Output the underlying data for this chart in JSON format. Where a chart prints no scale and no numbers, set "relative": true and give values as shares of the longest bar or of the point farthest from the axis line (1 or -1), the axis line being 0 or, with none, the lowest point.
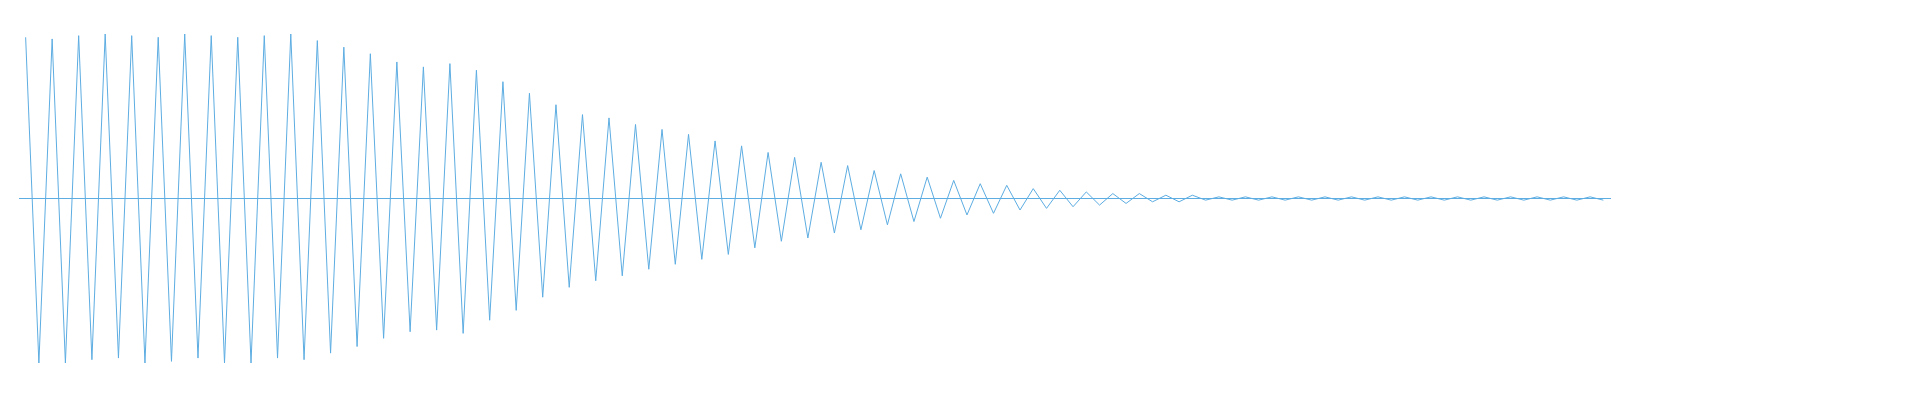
{
  "chart_data": {
    "type": "line",
    "relative": true,
    "ref_lines": [
      {
        "axis": "y",
        "value": 0,
        "color": "#5dade2"
      }
    ],
    "categories": [
      null,
      null,
      null,
      null,
      null,
      null,
      null,
      null,
      null,
      null,
      null,
      null,
      null,
      null,
      null,
      null,
      null,
      null,
      null,
      null,
      null,
      null,
      null,
      null,
      null,
      null,
      null,
      null,
      null,
      null,
      null,
      null,
      null,
      null,
      null,
      null,
      null,
      null,
      null,
      null,
      null,
      null,
      null,
      null,
      null,
      null,
      null,
      null,
      null,
      null,
      null,
      null,
      null,
      null,
      null,
      null,
      null,
      null,
      null,
      null,
      null,
      null,
      null,
      null,
      null,
      null,
      null,
      null,
      null,
      null,
      null,
      null,
      null,
      null,
      null,
      null,
      null,
      null,
      null,
      null,
      null,
      null,
      null,
      null,
      null,
      null,
      null,
      null,
      null,
      null,
      null,
      null,
      null,
      null,
      null,
      null,
      null,
      null,
      null,
      null,
      null,
      null,
      null,
      null,
      null,
      null,
      null,
      null,
      null,
      null,
      null,
      null,
      null,
      null,
      null,
      null,
      null,
      null,
      null,
      null
    ],
    "series": [
      {
        "color": "#5dade2",
        "values": [
          0.98,
          -1,
          0.97,
          -1,
          0.99,
          -0.98,
          1,
          -0.97,
          0.99,
          -1,
          0.98,
          -0.99,
          1,
          -0.97,
          0.99,
          -1,
          0.98,
          -1,
          0.99,
          -0.97,
          1,
          -0.98,
          0.96,
          -0.94,
          0.92,
          -0.9,
          0.88,
          -0.85,
          0.83,
          -0.81,
          0.8,
          -0.8,
          0.82,
          -0.82,
          0.78,
          -0.74,
          0.71,
          -0.68,
          0.64,
          -0.6,
          0.57,
          -0.54,
          0.51,
          -0.5,
          0.49,
          -0.47,
          0.45,
          -0.43,
          0.42,
          -0.4,
          0.39,
          -0.37,
          0.35,
          -0.34,
          0.32,
          -0.3,
          0.28,
          -0.26,
          0.25,
          -0.24,
          0.22,
          -0.21,
          0.2,
          -0.19,
          0.17,
          -0.16,
          0.15,
          -0.14,
          0.13,
          -0.12,
          0.11,
          -0.1,
          0.09,
          -0.09,
          0.08,
          -0.07,
          0.06,
          -0.06,
          0.05,
          -0.05,
          0.04,
          -0.04,
          0.03,
          -0.03,
          0.03,
          -0.02,
          0.02,
          -0.02,
          0.02,
          -0.01,
          0.01,
          -0.01,
          0.01,
          -0.01,
          0.01,
          -0.01,
          0.01,
          -0.01,
          0.01,
          -0.01,
          0.01,
          -0.01,
          0.01,
          -0.01,
          0.01,
          -0.01,
          0.01,
          -0.01,
          0.01,
          -0.01,
          0.01,
          -0.01,
          0.01,
          -0.01,
          0.01,
          -0.01,
          0.01,
          -0.01,
          0.01,
          -0.01
        ]
      }
    ]
  }
}
